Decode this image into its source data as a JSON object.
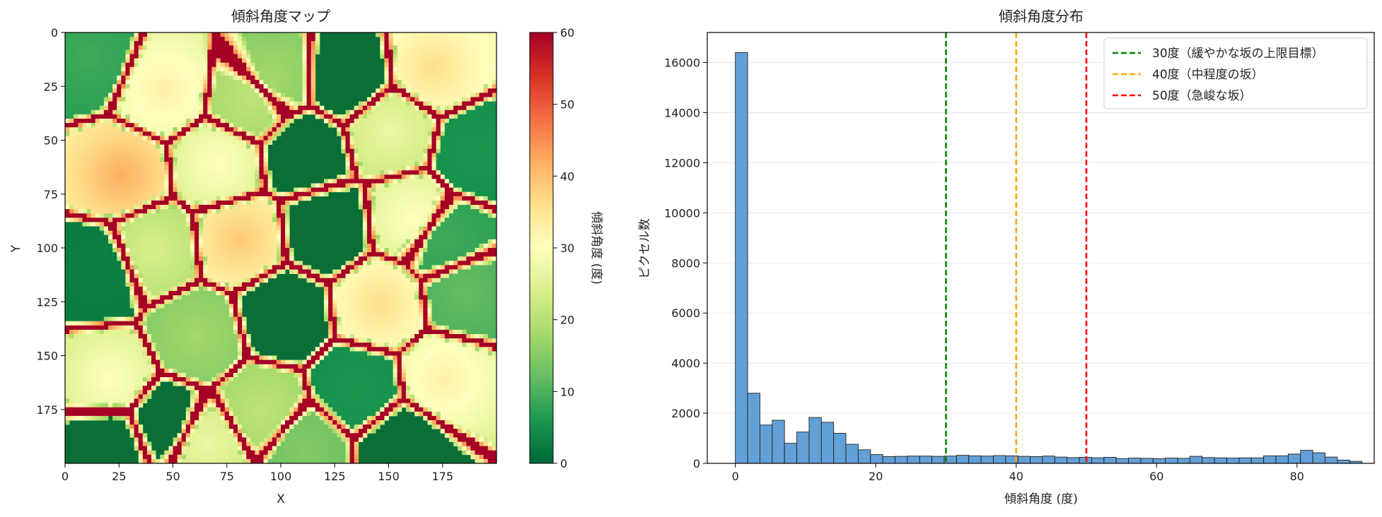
{
  "chart_data": [
    {
      "type": "heatmap",
      "title": "傾斜角度マップ",
      "xlabel": "X",
      "ylabel": "Y",
      "xlim": [
        0,
        200
      ],
      "ylim": [
        200,
        0
      ],
      "x_ticks": [
        0,
        25,
        50,
        75,
        100,
        125,
        150,
        175
      ],
      "y_ticks": [
        0,
        25,
        50,
        75,
        100,
        125,
        150,
        175
      ],
      "colormap": "RdYlGn_r",
      "colorbar": {
        "label": "傾斜角度 (度)",
        "range": [
          0,
          60
        ],
        "ticks": [
          0,
          10,
          20,
          30,
          40,
          50,
          60
        ],
        "colors": [
          "#006837",
          "#1a9850",
          "#66bd63",
          "#a6d96a",
          "#d9ef8b",
          "#ffffbf",
          "#fee08b",
          "#fdae61",
          "#f46d43",
          "#d73027",
          "#a50026"
        ]
      },
      "colors": {
        "ridge": "#a50026",
        "flat": "#0a6e36",
        "mid": "#8cc862",
        "high": "#fde08b"
      }
    },
    {
      "type": "bar",
      "subtype": "histogram",
      "title": "傾斜角度分布",
      "xlabel": "傾斜角度 (度)",
      "ylabel": "ピクセル数",
      "xlim": [
        -4,
        91
      ],
      "ylim": [
        0,
        17200
      ],
      "x_ticks": [
        0,
        20,
        40,
        60,
        80
      ],
      "y_ticks": [
        0,
        2000,
        4000,
        6000,
        8000,
        10000,
        12000,
        14000,
        16000
      ],
      "bin_width": 1.75,
      "bin_start": 0,
      "values": [
        16400,
        2800,
        1530,
        1720,
        800,
        1250,
        1830,
        1640,
        1200,
        760,
        540,
        350,
        270,
        280,
        290,
        290,
        280,
        290,
        320,
        300,
        290,
        310,
        300,
        280,
        270,
        290,
        250,
        230,
        240,
        220,
        240,
        190,
        210,
        200,
        190,
        210,
        200,
        280,
        230,
        220,
        210,
        220,
        220,
        300,
        300,
        370,
        520,
        420,
        250,
        130,
        80
      ],
      "bar_color": "#5b9bd5",
      "grid": "y",
      "vlines": [
        {
          "x": 30,
          "color": "#008000",
          "label": "30度（緩やかな坂の上限目標）"
        },
        {
          "x": 40,
          "color": "#ffa500",
          "label": "40度（中程度の坂）"
        },
        {
          "x": 50,
          "color": "#ff0000",
          "label": "50度（急峻な坂）"
        }
      ],
      "legend_position": "top-right"
    }
  ]
}
